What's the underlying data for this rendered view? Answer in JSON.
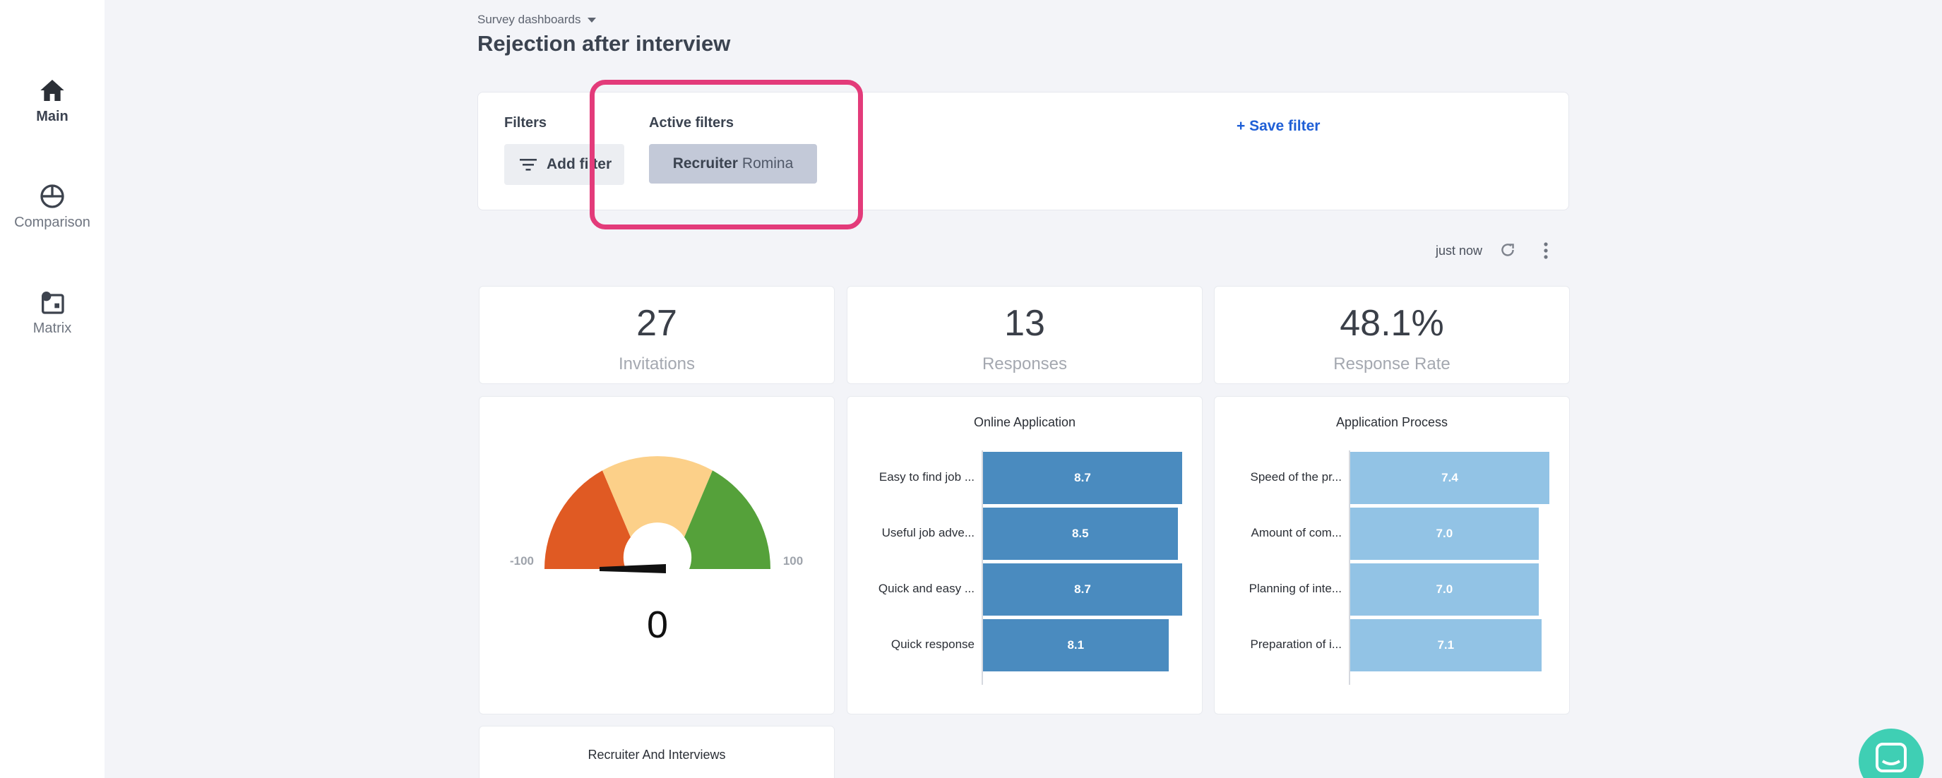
{
  "sidebar": {
    "items": [
      {
        "label": "Main",
        "icon": "home-icon",
        "active": true
      },
      {
        "label": "Comparison",
        "icon": "comparison-icon",
        "active": false
      },
      {
        "label": "Matrix",
        "icon": "matrix-icon",
        "active": false
      }
    ]
  },
  "header": {
    "breadcrumb": "Survey dashboards",
    "title": "Rejection after interview"
  },
  "filters": {
    "filters_label": "Filters",
    "add_filter_label": "Add filter",
    "active_label": "Active filters",
    "chip": {
      "key": "Recruiter",
      "value": "Romina"
    },
    "save_label": "+ Save filter"
  },
  "status": {
    "updated": "just now"
  },
  "kpis": [
    {
      "value": "27",
      "label": "Invitations"
    },
    {
      "value": "13",
      "label": "Responses"
    },
    {
      "value": "48.1%",
      "label": "Response Rate"
    }
  ],
  "gauge": {
    "min_label": "-100",
    "max_label": "100",
    "value": "0",
    "colors": {
      "low": "#e05a23",
      "mid": "#fcd089",
      "high": "#55a13a"
    }
  },
  "chart_data": [
    {
      "type": "bar",
      "title": "Online Application",
      "categories": [
        "Easy to find job ...",
        "Useful job adve...",
        "Quick and easy ...",
        "Quick response"
      ],
      "values": [
        8.7,
        8.5,
        8.7,
        8.1
      ],
      "xlim": [
        0,
        8.7
      ],
      "color": "#4a8bbf"
    },
    {
      "type": "bar",
      "title": "Application Process",
      "categories": [
        "Speed of the pr...",
        "Amount of com...",
        "Planning of inte...",
        "Preparation of i..."
      ],
      "values": [
        7.4,
        7.0,
        7.0,
        7.1
      ],
      "xlim": [
        0,
        7.4
      ],
      "color": "#92c3e5"
    }
  ],
  "bottom_card": {
    "title": "Recruiter And Interviews"
  }
}
